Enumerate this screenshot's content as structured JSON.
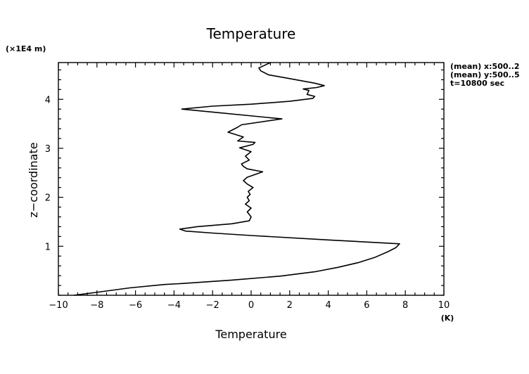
{
  "chart_data": {
    "type": "line",
    "title": "Temperature",
    "xlabel": "Temperature",
    "x_unit": "(K)",
    "ylabel": "z−coordinate",
    "y_unit": "(×1E4 m)",
    "xlim": [
      -10,
      10
    ],
    "ylim": [
      0,
      4.75
    ],
    "x_ticks": [
      "−10",
      "−8",
      "−6",
      "−4",
      "−2",
      "0",
      "2",
      "4",
      "6",
      "8",
      "10"
    ],
    "y_ticks": [
      "1",
      "2",
      "3",
      "4"
    ],
    "annotations": [
      "(mean) x:500..2",
      "(mean) y:500..5",
      "t=10800 sec"
    ],
    "series": [
      {
        "points": [
          [
            -9.2,
            0.0
          ],
          [
            -8.2,
            0.05
          ],
          [
            -6.3,
            0.15
          ],
          [
            -4.5,
            0.22
          ],
          [
            -3.6,
            0.24
          ],
          [
            -1.0,
            0.31
          ],
          [
            1.5,
            0.39
          ],
          [
            3.3,
            0.48
          ],
          [
            4.5,
            0.57
          ],
          [
            5.6,
            0.67
          ],
          [
            6.4,
            0.77
          ],
          [
            7.1,
            0.89
          ],
          [
            7.5,
            0.97
          ],
          [
            7.7,
            1.05
          ],
          [
            4.0,
            1.13
          ],
          [
            0.0,
            1.22
          ],
          [
            -2.0,
            1.27
          ],
          [
            -3.4,
            1.31
          ],
          [
            -3.7,
            1.35
          ],
          [
            -2.8,
            1.4
          ],
          [
            -1.0,
            1.46
          ],
          [
            -0.1,
            1.52
          ],
          [
            0.0,
            1.6
          ],
          [
            -0.2,
            1.7
          ],
          [
            0.0,
            1.78
          ],
          [
            -0.3,
            1.86
          ],
          [
            -0.1,
            1.93
          ],
          [
            -0.2,
            2.0
          ],
          [
            -0.05,
            2.06
          ],
          [
            -0.15,
            2.12
          ],
          [
            0.1,
            2.2
          ],
          [
            -0.2,
            2.27
          ],
          [
            -0.4,
            2.34
          ],
          [
            -0.2,
            2.41
          ],
          [
            0.6,
            2.52
          ],
          [
            -0.2,
            2.58
          ],
          [
            -0.4,
            2.63
          ],
          [
            -0.5,
            2.68
          ],
          [
            -0.1,
            2.76
          ],
          [
            -0.3,
            2.84
          ],
          [
            0.0,
            2.93
          ],
          [
            -0.6,
            3.01
          ],
          [
            0.1,
            3.08
          ],
          [
            0.2,
            3.12
          ],
          [
            -0.7,
            3.15
          ],
          [
            -0.4,
            3.23
          ],
          [
            -1.2,
            3.33
          ],
          [
            -0.7,
            3.43
          ],
          [
            -0.5,
            3.48
          ],
          [
            1.6,
            3.6
          ],
          [
            -2.0,
            3.74
          ],
          [
            -3.6,
            3.8
          ],
          [
            -2.0,
            3.86
          ],
          [
            0.0,
            3.9
          ],
          [
            2.0,
            3.96
          ],
          [
            3.2,
            4.02
          ],
          [
            3.3,
            4.06
          ],
          [
            2.9,
            4.1
          ],
          [
            3.0,
            4.18
          ],
          [
            2.7,
            4.21
          ],
          [
            3.4,
            4.24
          ],
          [
            3.8,
            4.28
          ],
          [
            3.3,
            4.33
          ],
          [
            1.9,
            4.43
          ],
          [
            0.9,
            4.5
          ],
          [
            0.5,
            4.58
          ],
          [
            0.4,
            4.64
          ],
          [
            1.0,
            4.75
          ]
        ]
      }
    ]
  }
}
